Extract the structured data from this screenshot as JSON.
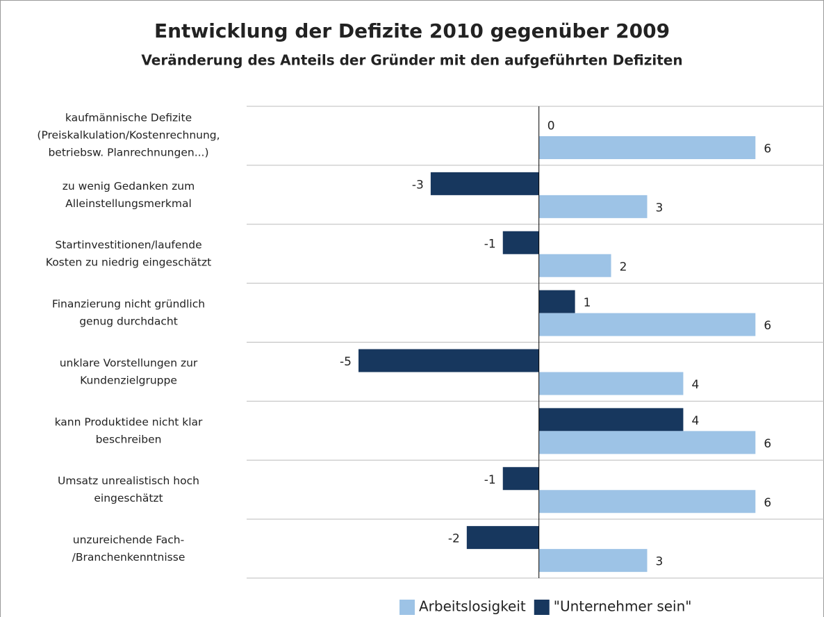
{
  "chart_data": {
    "type": "bar",
    "orientation": "horizontal",
    "title": "Entwicklung der Defizite 2010 gegenüber 2009",
    "subtitle": "Veränderung des Anteils der Gründer mit den aufgeführten Defiziten",
    "categories": [
      "kaufmännische Defizite\n(Preiskalkulation/Kostenrechnung,\nbetriebsw. Planrechnungen...)",
      "zu wenig Gedanken zum\nAlleinstellungsmerkmal",
      "Startinvestitionen/laufende\nKosten zu niedrig eingeschätzt",
      "Finanzierung nicht gründlich\ngenug durchdacht",
      "unklare Vorstellungen zur\nKundenzielgruppe",
      "kann Produktidee nicht klar\nbeschreiben",
      "Umsatz unrealistisch hoch\neingeschätzt",
      "unzureichende Fach-\n/Branchenkenntnisse"
    ],
    "series": [
      {
        "name": "Arbeitslosigkeit",
        "color": "#9dc3e6",
        "values": [
          6,
          3,
          2,
          6,
          4,
          6,
          6,
          3
        ]
      },
      {
        "name": "\"Unternehmer sein\"",
        "color": "#17375e",
        "values": [
          0,
          -3,
          -1,
          1,
          -5,
          4,
          -1,
          -2
        ]
      }
    ],
    "xlim": [
      -8.1,
      7.9
    ],
    "legend": "bottom"
  }
}
